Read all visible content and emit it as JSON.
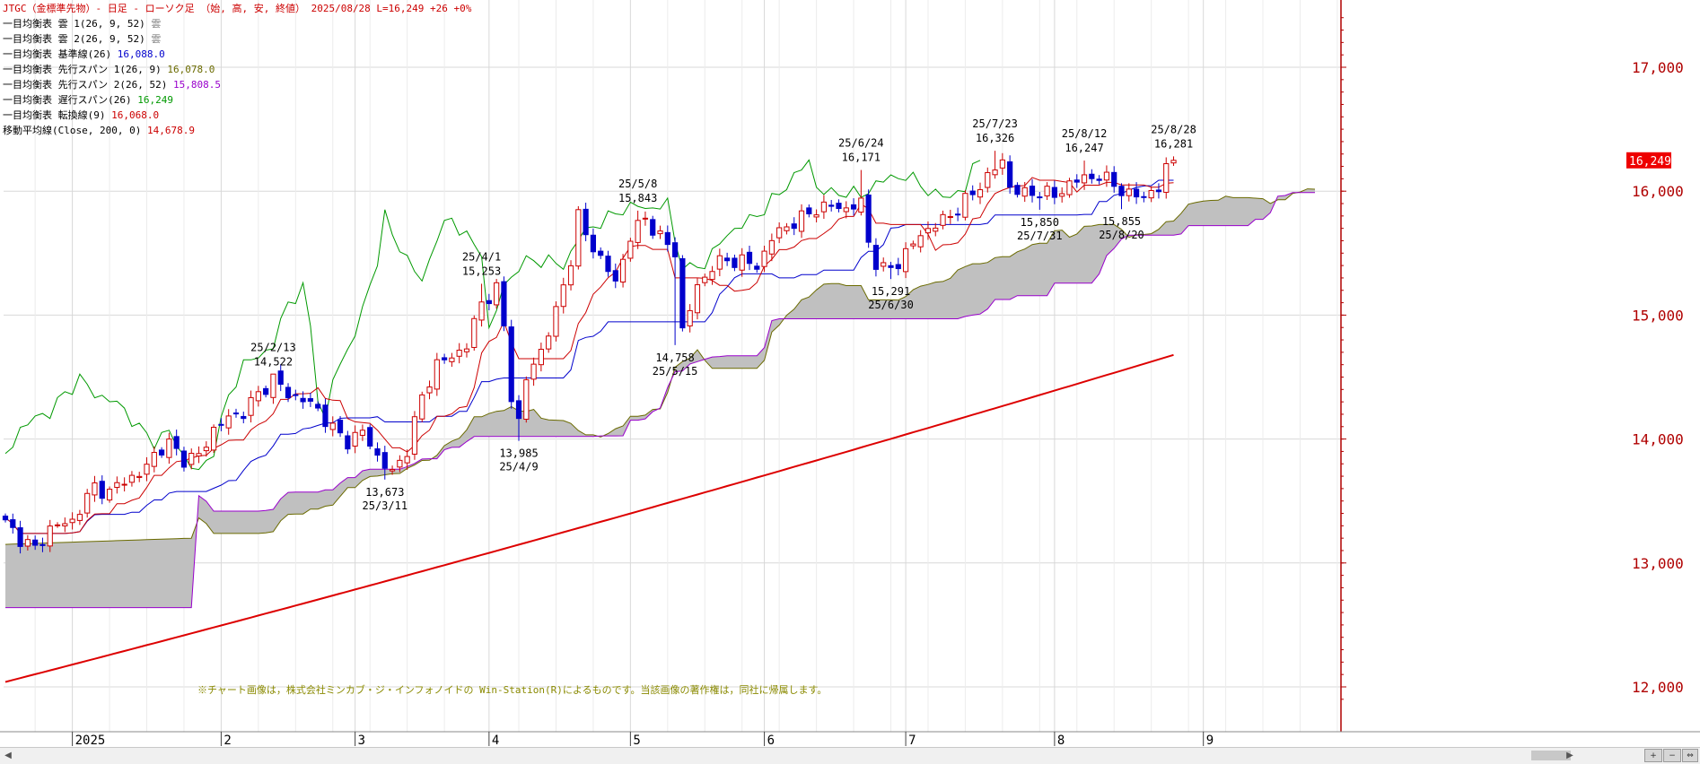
{
  "header": {
    "title": "JTGC（金標準先物）- 日足 - ローソク足 （始, 高, 安, 終値）",
    "date": "2025/08/28",
    "last": "L=16,249",
    "change": "+26",
    "pct": "+0%"
  },
  "legend": [
    {
      "name": "一目均衡表 雲 1(26, 9, 52)",
      "value": "雲",
      "color": "#808080"
    },
    {
      "name": "一目均衡表 雲 2(26, 9, 52)",
      "value": "雲",
      "color": "#808080"
    },
    {
      "name": "一目均衡表 基準線(26)",
      "value": "16,088.0",
      "color": "#0000cc"
    },
    {
      "name": "一目均衡表 先行スパン 1(26, 9)",
      "value": "16,078.0",
      "color": "#6b6b00"
    },
    {
      "name": "一目均衡表 先行スパン 2(26, 52)",
      "value": "15,808.5",
      "color": "#9900cc"
    },
    {
      "name": "一目均衡表 遅行スパン(26)",
      "value": "16,249",
      "color": "#009900"
    },
    {
      "name": "一目均衡表 転換線(9)",
      "value": "16,068.0",
      "color": "#cc0000"
    },
    {
      "name": "移動平均線(Close, 200, 0)",
      "value": "14,678.9",
      "color": "#cc0000"
    }
  ],
  "copyright": "※チャート画像は，株式会社ミンカブ・ジ・インフォノイドの Win-Station(R)によるものです。当該画像の著作権は，同社に帰属します。",
  "price_tag": "16,249",
  "colors": {
    "up": "#cc0000",
    "down": "#0000cc",
    "tenkan": "#cc0000",
    "kijun": "#0000cc",
    "chikou": "#009900",
    "spanA": "#6b6b00",
    "spanB": "#9900cc",
    "cloud": "#c0c0c0",
    "ma": "#dd0000",
    "grid": "#d8d8d8"
  },
  "chart_data": {
    "type": "candlestick",
    "ylim": [
      11900,
      17450
    ],
    "y_ticks": [
      {
        "value": 12000,
        "label": "12,000"
      },
      {
        "value": 13000,
        "label": "13,000"
      },
      {
        "value": 14000,
        "label": "14,000"
      },
      {
        "value": 15000,
        "label": "15,000"
      },
      {
        "value": 16000,
        "label": "16,000"
      },
      {
        "value": 17000,
        "label": "17,000"
      }
    ],
    "x_ticks": [
      {
        "label": "2025",
        "day": 9
      },
      {
        "label": "2",
        "day": 29
      },
      {
        "label": "3",
        "day": 47
      },
      {
        "label": "4",
        "day": 65
      },
      {
        "label": "5",
        "day": 84
      },
      {
        "label": "6",
        "day": 102
      },
      {
        "label": "7",
        "day": 121
      },
      {
        "label": "8",
        "day": 141
      },
      {
        "label": "9",
        "day": 161
      }
    ],
    "x_range": [
      0,
      180
    ],
    "last_bar_day": 157,
    "close_anchors": [
      [
        0,
        13320
      ],
      [
        2,
        13200
      ],
      [
        4,
        13110
      ],
      [
        6,
        13280
      ],
      [
        9,
        13340
      ],
      [
        12,
        13620
      ],
      [
        14,
        13560
      ],
      [
        16,
        13680
      ],
      [
        18,
        13700
      ],
      [
        20,
        13880
      ],
      [
        22,
        13960
      ],
      [
        24,
        13840
      ],
      [
        26,
        13860
      ],
      [
        28,
        14080
      ],
      [
        30,
        14170
      ],
      [
        32,
        14220
      ],
      [
        34,
        14360
      ],
      [
        36,
        14490
      ],
      [
        38,
        14360
      ],
      [
        40,
        14320
      ],
      [
        42,
        14240
      ],
      [
        44,
        14080
      ],
      [
        46,
        13980
      ],
      [
        48,
        14060
      ],
      [
        50,
        13860
      ],
      [
        52,
        13720
      ],
      [
        54,
        13920
      ],
      [
        56,
        14340
      ],
      [
        58,
        14610
      ],
      [
        60,
        14660
      ],
      [
        62,
        14760
      ],
      [
        64,
        15100
      ],
      [
        66,
        15210
      ],
      [
        67,
        14900
      ],
      [
        68,
        14350
      ],
      [
        69,
        14140
      ],
      [
        70,
        14480
      ],
      [
        72,
        14720
      ],
      [
        74,
        15020
      ],
      [
        76,
        15460
      ],
      [
        77,
        15800
      ],
      [
        78,
        15640
      ],
      [
        80,
        15460
      ],
      [
        82,
        15260
      ],
      [
        84,
        15640
      ],
      [
        86,
        15780
      ],
      [
        88,
        15630
      ],
      [
        90,
        15500
      ],
      [
        91,
        14880
      ],
      [
        93,
        15220
      ],
      [
        95,
        15400
      ],
      [
        97,
        15440
      ],
      [
        99,
        15440
      ],
      [
        101,
        15390
      ],
      [
        103,
        15620
      ],
      [
        105,
        15720
      ],
      [
        107,
        15780
      ],
      [
        109,
        15860
      ],
      [
        111,
        15880
      ],
      [
        113,
        15860
      ],
      [
        115,
        15900
      ],
      [
        116,
        15600
      ],
      [
        117,
        15420
      ],
      [
        118,
        15360
      ],
      [
        120,
        15420
      ],
      [
        122,
        15580
      ],
      [
        124,
        15700
      ],
      [
        126,
        15760
      ],
      [
        128,
        15860
      ],
      [
        130,
        15980
      ],
      [
        132,
        16120
      ],
      [
        134,
        16240
      ],
      [
        135,
        16040
      ],
      [
        137,
        15970
      ],
      [
        139,
        16000
      ],
      [
        141,
        15960
      ],
      [
        143,
        16060
      ],
      [
        145,
        16110
      ],
      [
        147,
        16120
      ],
      [
        149,
        16060
      ],
      [
        151,
        15960
      ],
      [
        153,
        15970
      ],
      [
        155,
        16010
      ],
      [
        156,
        16190
      ],
      [
        157,
        16249
      ]
    ],
    "ma200": {
      "start": 12040,
      "end": 14679
    },
    "annotations": [
      {
        "type": "high",
        "date": "25/2/13",
        "value": "14,522",
        "day": 36
      },
      {
        "type": "low",
        "date": "25/3/11",
        "value": "13,673",
        "day": 51
      },
      {
        "type": "high",
        "date": "25/4/1",
        "value": "15,253",
        "day": 64
      },
      {
        "type": "low",
        "date": "25/4/9",
        "value": "13,985",
        "day": 69
      },
      {
        "type": "high",
        "date": "25/5/8",
        "value": "15,843",
        "day": 85
      },
      {
        "type": "low",
        "date": "25/5/15",
        "value": "14,758",
        "day": 90
      },
      {
        "type": "high",
        "date": "25/6/24",
        "value": "16,171",
        "day": 115
      },
      {
        "type": "low",
        "date": "25/6/30",
        "value": "15,291",
        "day": 119
      },
      {
        "type": "high",
        "date": "25/7/23",
        "value": "16,326",
        "day": 133
      },
      {
        "type": "low",
        "date": "25/7/31",
        "value": "15,850",
        "day": 139
      },
      {
        "type": "high",
        "date": "25/8/12",
        "value": "16,247",
        "day": 145
      },
      {
        "type": "low",
        "date": "25/8/20",
        "value": "15,855",
        "day": 150
      },
      {
        "type": "high",
        "date": "25/8/28",
        "value": "16,281",
        "day": 157
      }
    ]
  }
}
